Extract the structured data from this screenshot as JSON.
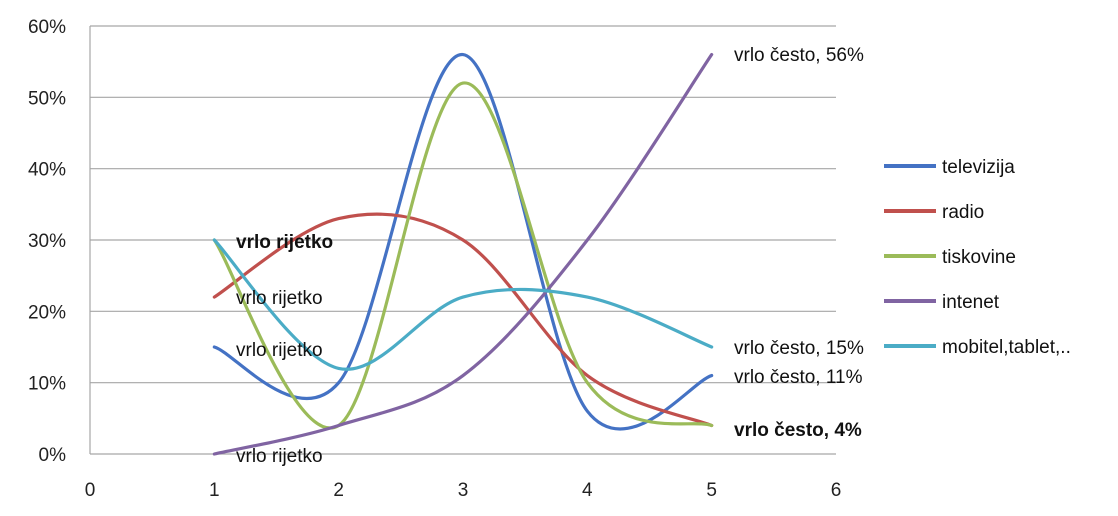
{
  "chart_data": {
    "type": "line",
    "title": "",
    "xlabel": "",
    "ylabel": "",
    "xlim": [
      0,
      6
    ],
    "ylim": [
      0,
      0.6
    ],
    "x_ticks": [
      "0",
      "1",
      "2",
      "3",
      "4",
      "5",
      "6"
    ],
    "y_ticks": [
      "0%",
      "10%",
      "20%",
      "30%",
      "40%",
      "50%",
      "60%"
    ],
    "grid": "horizontal",
    "legend_position": "right",
    "x": [
      1,
      2,
      3,
      4,
      5
    ],
    "series": [
      {
        "name": "televizija",
        "color": "#4472c4",
        "values": [
          0.15,
          0.1,
          0.56,
          0.06,
          0.11
        ]
      },
      {
        "name": "radio",
        "color": "#c0504d",
        "values": [
          0.22,
          0.33,
          0.3,
          0.11,
          0.04
        ]
      },
      {
        "name": "tiskovine",
        "color": "#9bbb59",
        "values": [
          0.3,
          0.04,
          0.52,
          0.1,
          0.04
        ]
      },
      {
        "name": "intenet",
        "color": "#8064a2",
        "values": [
          0.0,
          0.04,
          0.11,
          0.3,
          0.56
        ]
      },
      {
        "name": "mobitel,tablet,..",
        "color": "#4bacc6",
        "values": [
          0.3,
          0.12,
          0.22,
          0.22,
          0.15
        ]
      }
    ],
    "annotations": [
      {
        "text": "vrlo rijetko",
        "bold": true
      },
      {
        "text": "vrlo rijetko",
        "bold": false
      },
      {
        "text": "vrlo rijetko",
        "bold": false
      },
      {
        "text": "vrlo rijetko",
        "bold": false
      },
      {
        "text": "vrlo često, 56%",
        "bold": false
      },
      {
        "text": "vrlo često, 15%",
        "bold": false
      },
      {
        "text": "vrlo često, 11%",
        "bold": false
      },
      {
        "text": "vrlo često, 4%",
        "bold": true
      }
    ]
  }
}
